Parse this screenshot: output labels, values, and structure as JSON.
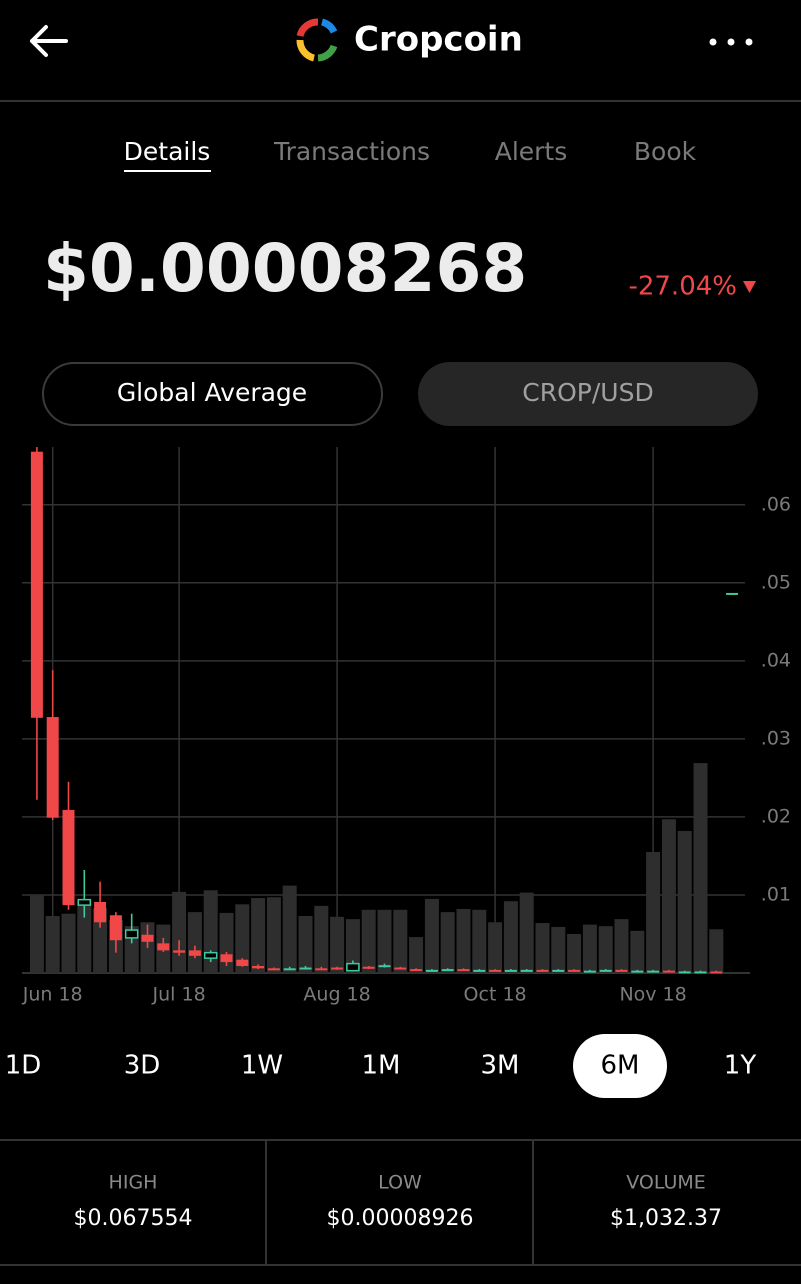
{
  "header": {
    "title": "Cropcoin"
  },
  "tabs": [
    "Details",
    "Transactions",
    "Alerts",
    "Book"
  ],
  "price": "$0.00008268",
  "change": "-27.04%",
  "toggles": [
    "Global Average",
    "CROP/USD"
  ],
  "chart_data": {
    "type": "candlestick",
    "categories": [
      null,
      "Jun 18",
      null,
      null,
      null,
      null,
      null,
      null,
      null,
      "Jul 18",
      null,
      null,
      null,
      null,
      null,
      null,
      null,
      null,
      null,
      "Aug 18",
      null,
      null,
      null,
      null,
      null,
      null,
      null,
      null,
      null,
      "Oct 18",
      null,
      null,
      null,
      null,
      null,
      null,
      null,
      null,
      null,
      "Nov 18",
      null,
      null,
      null,
      null,
      null
    ],
    "open": [
      0.0668,
      0.0328,
      0.0209,
      0.0087,
      0.0091,
      0.0074,
      0.0045,
      0.0049,
      0.0038,
      0.0029,
      0.0029,
      0.0019,
      0.0024,
      0.0017,
      0.0009,
      0.0006,
      0.0005,
      0.0006,
      0.0006,
      0.0007,
      0.0003,
      0.0008,
      0.0008,
      0.0007,
      0.0005,
      0.0004,
      0.0004,
      0.0005,
      0.0004,
      0.0004,
      0.0003,
      0.0004,
      0.0004,
      0.0003,
      0.0004,
      0.0003,
      0.0003,
      0.0004,
      0.0003,
      0.0003,
      0.0003,
      0.0002,
      0.0002,
      0.0002,
      0.0487
    ],
    "high": [
      0.0674,
      0.0388,
      0.0245,
      0.0132,
      0.0117,
      0.0078,
      0.0076,
      0.0062,
      0.0045,
      0.0042,
      0.0035,
      0.0029,
      0.0027,
      0.0019,
      0.0011,
      0.0007,
      0.0008,
      0.0009,
      0.0008,
      0.0008,
      0.0016,
      0.0009,
      0.0012,
      0.0008,
      0.0006,
      0.0005,
      0.0006,
      0.0006,
      0.0005,
      0.0005,
      0.0005,
      0.0005,
      0.0005,
      0.0005,
      0.0005,
      0.0004,
      0.0005,
      0.0005,
      0.0004,
      0.0004,
      0.0004,
      0.0003,
      0.0003,
      0.0003,
      0.0487
    ],
    "low": [
      0.0222,
      0.0196,
      0.0081,
      0.0071,
      0.0058,
      0.0026,
      0.0038,
      0.0032,
      0.0027,
      0.0022,
      0.0019,
      0.0014,
      0.0009,
      0.0008,
      0.0005,
      0.0004,
      0.0004,
      0.0005,
      0.0004,
      0.0004,
      0.0002,
      0.0005,
      0.0007,
      0.0005,
      0.0003,
      0.0003,
      0.0004,
      0.0003,
      0.0003,
      0.0002,
      0.0003,
      0.0003,
      0.0002,
      0.0003,
      0.0002,
      0.0002,
      0.0003,
      0.0002,
      0.0002,
      0.0002,
      0.0001,
      0.0001,
      0.0001,
      0.0001,
      0.0487
    ],
    "close": [
      0.0327,
      0.0199,
      0.0087,
      0.0094,
      0.0065,
      0.0042,
      0.0055,
      0.004,
      0.0029,
      0.0026,
      0.0022,
      0.0026,
      0.0014,
      0.0009,
      0.0006,
      0.0005,
      0.0006,
      0.0007,
      0.0005,
      0.0005,
      0.0012,
      0.0006,
      0.001,
      0.0006,
      0.0004,
      0.0004,
      0.0005,
      0.0004,
      0.0004,
      0.0003,
      0.0004,
      0.0004,
      0.0003,
      0.0004,
      0.0003,
      0.0003,
      0.0004,
      0.0003,
      0.0003,
      0.0003,
      0.0002,
      0.0002,
      0.0002,
      0.0001,
      0.0487
    ],
    "volume": [
      0.01,
      0.0073,
      0.0076,
      0.0094,
      0.0083,
      0.0068,
      0.006,
      0.0065,
      0.0062,
      0.0104,
      0.0078,
      0.0106,
      0.0077,
      0.0088,
      0.0096,
      0.0097,
      0.0112,
      0.0073,
      0.0086,
      0.0072,
      0.0069,
      0.0081,
      0.0081,
      0.0081,
      0.0046,
      0.0095,
      0.0078,
      0.0082,
      0.0081,
      0.0065,
      0.0092,
      0.0103,
      0.0064,
      0.0059,
      0.005,
      0.0062,
      0.006,
      0.0069,
      0.0054,
      0.0155,
      0.0197,
      0.0182,
      0.0269,
      0.0056,
      null
    ],
    "up_color": "#3ec9a0",
    "down_color": "#f04848",
    "volume_color": "#2e2e2e",
    "ylim": [
      0,
      0.0674
    ],
    "yticks": [
      {
        "value": 0.01,
        "label": ".01"
      },
      {
        "value": 0.02,
        "label": ".02"
      },
      {
        "value": 0.03,
        "label": ".03"
      },
      {
        "value": 0.04,
        "label": ".04"
      },
      {
        "value": 0.05,
        "label": ".05"
      },
      {
        "value": 0.06,
        "label": ".06"
      }
    ],
    "grid": true
  },
  "ranges": [
    "1D",
    "3D",
    "1W",
    "1M",
    "3M",
    "6M",
    "1Y"
  ],
  "stats": [
    {
      "label": "HIGH",
      "value": "$0.067554"
    },
    {
      "label": "LOW",
      "value": "$0.00008926"
    },
    {
      "label": "VOLUME",
      "value": "$1,032.37"
    }
  ]
}
